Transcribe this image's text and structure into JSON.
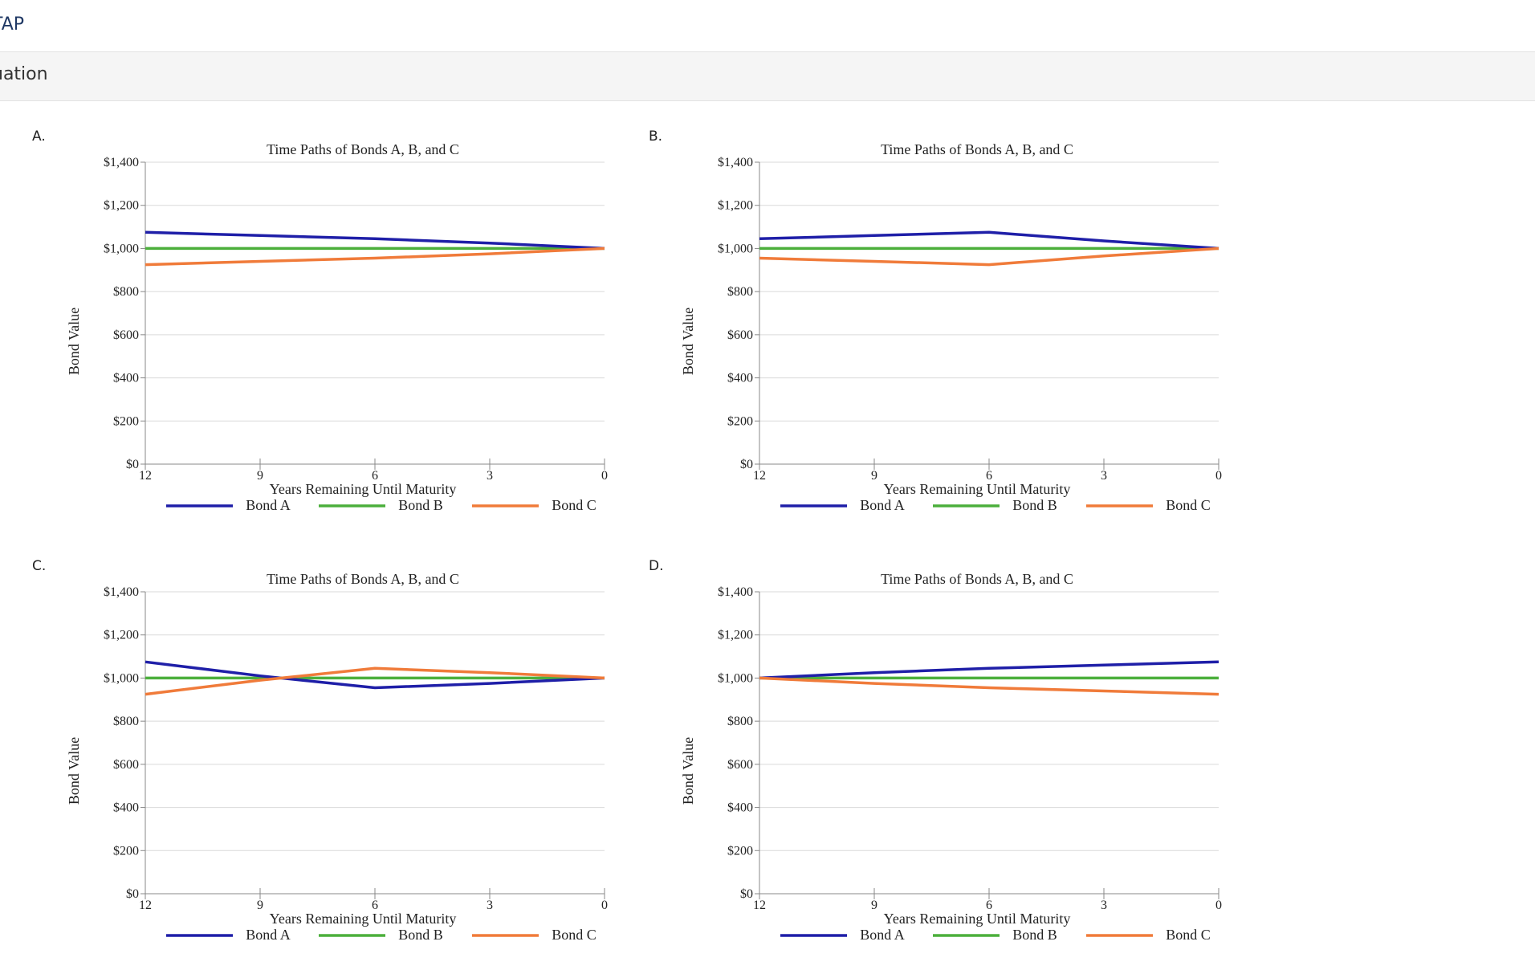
{
  "header": {
    "title": "TAP"
  },
  "section": {
    "title": "uation"
  },
  "colors": {
    "bond_a": "#1f1fa8",
    "bond_b": "#4caf3c",
    "bond_c": "#f07b3a",
    "grid": "#d9d9d9",
    "axis": "#888888"
  },
  "options": [
    {
      "label": "A."
    },
    {
      "label": "B."
    },
    {
      "label": "C."
    },
    {
      "label": "D."
    }
  ],
  "chart_data": [
    {
      "type": "line",
      "title": "Time Paths of Bonds A, B, and C",
      "xlabel": "Years Remaining Until Maturity",
      "ylabel": "Bond Value",
      "x": [
        12,
        9,
        6,
        3,
        0
      ],
      "x_ticks": [
        "12",
        "9",
        "6",
        "3",
        "0"
      ],
      "y_ticks": [
        "$0",
        "$200",
        "$400",
        "$600",
        "$800",
        "$1,000",
        "$1,200",
        "$1,400"
      ],
      "ylim": [
        0,
        1400
      ],
      "grid": true,
      "legend": "bottom",
      "series": [
        {
          "name": "Bond A",
          "values": [
            1075,
            1060,
            1045,
            1025,
            1000
          ]
        },
        {
          "name": "Bond B",
          "values": [
            1000,
            1000,
            1000,
            1000,
            1000
          ]
        },
        {
          "name": "Bond C",
          "values": [
            925,
            940,
            955,
            975,
            1000
          ]
        }
      ]
    },
    {
      "type": "line",
      "title": "Time Paths of Bonds A, B, and C",
      "xlabel": "Years Remaining Until Maturity",
      "ylabel": "Bond Value",
      "x": [
        12,
        9,
        6,
        3,
        0
      ],
      "x_ticks": [
        "12",
        "9",
        "6",
        "3",
        "0"
      ],
      "y_ticks": [
        "$0",
        "$200",
        "$400",
        "$600",
        "$800",
        "$1,000",
        "$1,200",
        "$1,400"
      ],
      "ylim": [
        0,
        1400
      ],
      "grid": true,
      "legend": "bottom",
      "series": [
        {
          "name": "Bond A",
          "values": [
            1045,
            1060,
            1075,
            1035,
            1000
          ]
        },
        {
          "name": "Bond B",
          "values": [
            1000,
            1000,
            1000,
            1000,
            1000
          ]
        },
        {
          "name": "Bond C",
          "values": [
            955,
            940,
            925,
            965,
            1000
          ]
        }
      ]
    },
    {
      "type": "line",
      "title": "Time Paths of Bonds A, B, and C",
      "xlabel": "Years Remaining Until Maturity",
      "ylabel": "Bond Value",
      "x": [
        12,
        9,
        6,
        3,
        0
      ],
      "x_ticks": [
        "12",
        "9",
        "6",
        "3",
        "0"
      ],
      "y_ticks": [
        "$0",
        "$200",
        "$400",
        "$600",
        "$800",
        "$1,000",
        "$1,200",
        "$1,400"
      ],
      "ylim": [
        0,
        1400
      ],
      "grid": true,
      "legend": "bottom",
      "series": [
        {
          "name": "Bond A",
          "values": [
            1075,
            1010,
            955,
            975,
            1000
          ]
        },
        {
          "name": "Bond B",
          "values": [
            1000,
            1000,
            1000,
            1000,
            1000
          ]
        },
        {
          "name": "Bond C",
          "values": [
            925,
            990,
            1045,
            1025,
            1000
          ]
        }
      ]
    },
    {
      "type": "line",
      "title": "Time Paths of Bonds A, B, and C",
      "xlabel": "Years Remaining Until Maturity",
      "ylabel": "Bond Value",
      "x": [
        12,
        9,
        6,
        3,
        0
      ],
      "x_ticks": [
        "12",
        "9",
        "6",
        "3",
        "0"
      ],
      "y_ticks": [
        "$0",
        "$200",
        "$400",
        "$600",
        "$800",
        "$1,000",
        "$1,200",
        "$1,400"
      ],
      "ylim": [
        0,
        1400
      ],
      "grid": true,
      "legend": "bottom",
      "series": [
        {
          "name": "Bond A",
          "values": [
            1000,
            1025,
            1045,
            1060,
            1075
          ]
        },
        {
          "name": "Bond B",
          "values": [
            1000,
            1000,
            1000,
            1000,
            1000
          ]
        },
        {
          "name": "Bond C",
          "values": [
            1000,
            975,
            955,
            940,
            925
          ]
        }
      ]
    }
  ]
}
